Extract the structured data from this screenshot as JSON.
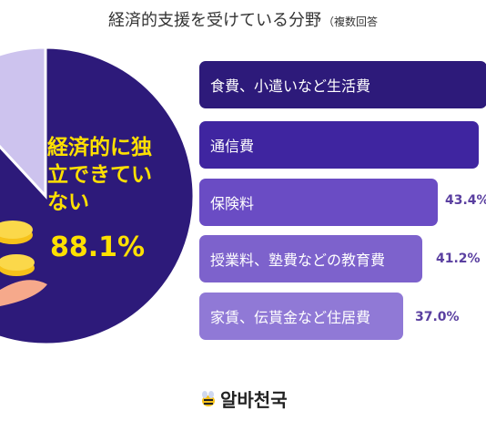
{
  "title": "経済的支援を受けている分野",
  "subtitle": "（複数回答",
  "chart_data": [
    {
      "type": "pie",
      "slices": [
        {
          "label": "経済的に独立できていない",
          "value": 88.1,
          "color": "#2d1a7a"
        },
        {
          "label": "",
          "value": 11.9,
          "color": "#cdc3ee"
        }
      ],
      "label_text": "経済的に独立できていない",
      "value_label": "88.1%"
    },
    {
      "type": "bar",
      "orientation": "horizontal",
      "categories": [
        "食費、小遣いなど生活費",
        "通信費",
        "保険料",
        "授業料、塾費などの教育費",
        "家賃、伝貰金など住居費"
      ],
      "values": [
        null,
        null,
        43.4,
        41.2,
        37.0
      ],
      "value_labels": [
        "",
        "",
        "43.4%",
        "41.2%",
        "37.0%"
      ],
      "colors": [
        "#2d1a7a",
        "#3f25a0",
        "#6a4cc4",
        "#7d62cc",
        "#9079d6"
      ]
    }
  ],
  "logo": {
    "text": "알바천국"
  }
}
